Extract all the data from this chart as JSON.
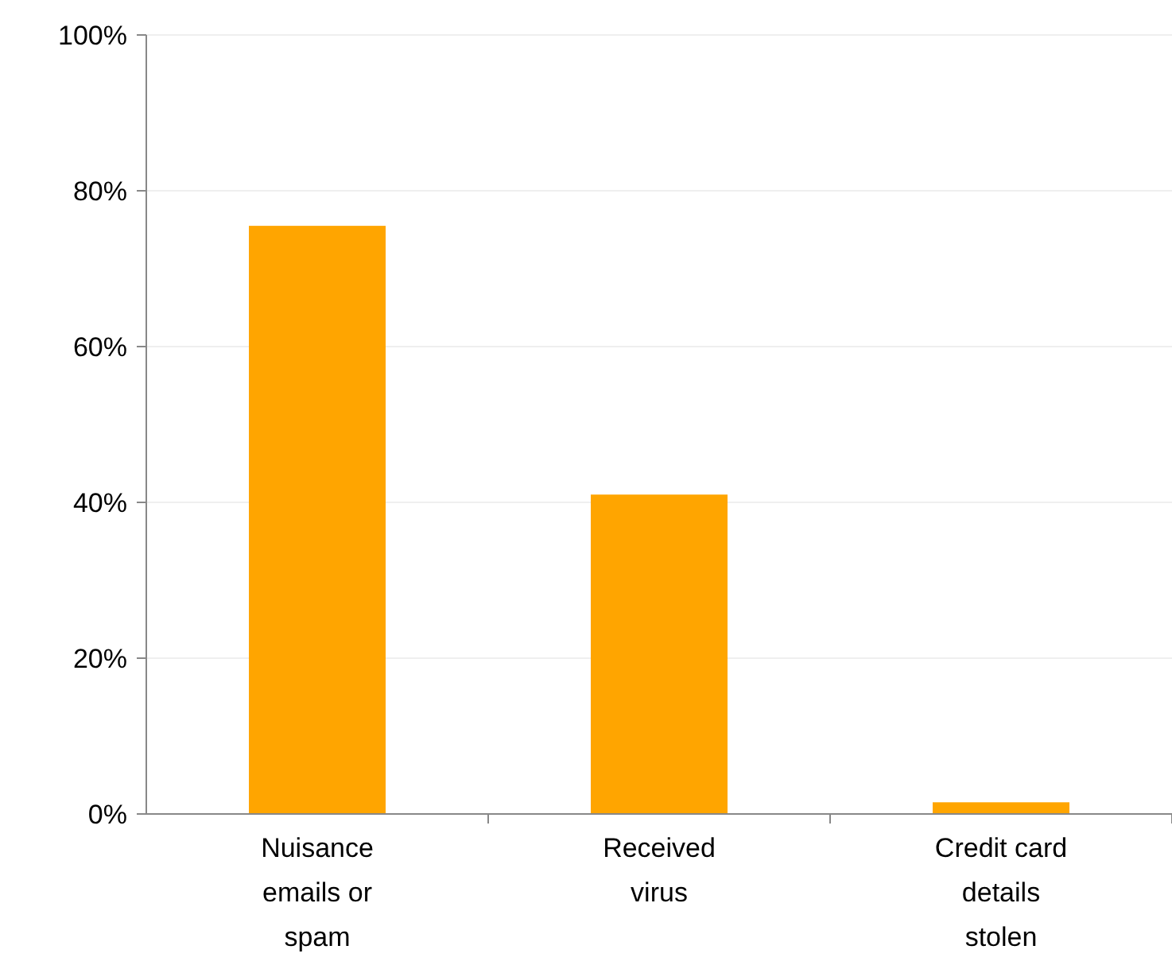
{
  "chart_data": {
    "type": "bar",
    "categories": [
      "Nuisance emails or spam",
      "Received virus",
      "Credit card details stolen"
    ],
    "values": [
      75.5,
      41,
      1.5
    ],
    "color": "#ffa500",
    "ylim": [
      0,
      100
    ],
    "yticks": [
      {
        "value": 0,
        "label": "0%"
      },
      {
        "value": 20,
        "label": "20%"
      },
      {
        "value": 40,
        "label": "40%"
      },
      {
        "value": 60,
        "label": "60%"
      },
      {
        "value": 80,
        "label": "80%"
      },
      {
        "value": 100,
        "label": "100%"
      }
    ],
    "grid": "y"
  }
}
